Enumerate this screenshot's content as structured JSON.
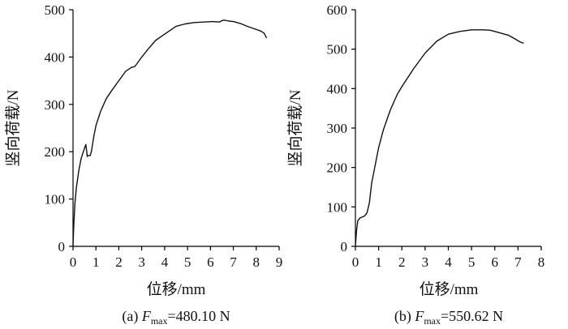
{
  "chart_data": [
    {
      "type": "line",
      "panel": "a",
      "caption_prefix": "(a) ",
      "caption_var": "F",
      "caption_sub": "max",
      "caption_value": "=480.10 N",
      "xlabel": "位移/mm",
      "ylabel": "竖向荷载/N",
      "xlim": [
        0,
        9
      ],
      "ylim": [
        0,
        500
      ],
      "xticks": [
        0,
        1,
        2,
        3,
        4,
        5,
        6,
        7,
        8,
        9
      ],
      "yticks": [
        0,
        100,
        200,
        300,
        400,
        500
      ],
      "grid": false,
      "series": [
        {
          "x": [
            0,
            0.03,
            0.08,
            0.15,
            0.25,
            0.35,
            0.45,
            0.52,
            0.56,
            0.6,
            0.62,
            0.68,
            0.75,
            0.8,
            0.9,
            1.0,
            1.2,
            1.45,
            1.7,
            2.0,
            2.3,
            2.55,
            2.7,
            3.0,
            3.3,
            3.6,
            3.9,
            4.2,
            4.5,
            4.9,
            5.3,
            5.7,
            6.1,
            6.4,
            6.5,
            6.6,
            6.8,
            7.0,
            7.3,
            7.6,
            7.9,
            8.2,
            8.35,
            8.45
          ],
          "y": [
            0,
            40,
            90,
            125,
            160,
            185,
            200,
            210,
            215,
            200,
            190,
            192,
            192,
            200,
            230,
            255,
            285,
            312,
            330,
            350,
            370,
            378,
            380,
            400,
            418,
            435,
            445,
            455,
            465,
            470,
            473,
            474,
            475,
            474,
            477,
            478,
            476,
            475,
            471,
            465,
            460,
            455,
            450,
            440
          ]
        }
      ]
    },
    {
      "type": "line",
      "panel": "b",
      "caption_prefix": "(b) ",
      "caption_var": "F",
      "caption_sub": "max",
      "caption_value": "=550.62 N",
      "xlabel": "位移/mm",
      "ylabel": "竖向荷载/N",
      "xlim": [
        0,
        8
      ],
      "ylim": [
        0,
        600
      ],
      "xticks": [
        0,
        1,
        2,
        3,
        4,
        5,
        6,
        7,
        8
      ],
      "yticks": [
        0,
        100,
        200,
        300,
        400,
        500,
        600
      ],
      "grid": false,
      "series": [
        {
          "x": [
            0,
            0.05,
            0.1,
            0.2,
            0.4,
            0.5,
            0.6,
            0.7,
            0.8,
            1.0,
            1.2,
            1.5,
            1.8,
            2.0,
            2.5,
            3.0,
            3.5,
            4.0,
            4.5,
            5.0,
            5.5,
            5.8,
            6.0,
            6.3,
            6.6,
            6.9,
            7.1,
            7.25
          ],
          "y": [
            0,
            40,
            65,
            72,
            77,
            85,
            110,
            160,
            190,
            250,
            295,
            345,
            385,
            405,
            450,
            490,
            520,
            538,
            545,
            549,
            549,
            548,
            545,
            540,
            535,
            525,
            518,
            515
          ]
        }
      ]
    }
  ]
}
